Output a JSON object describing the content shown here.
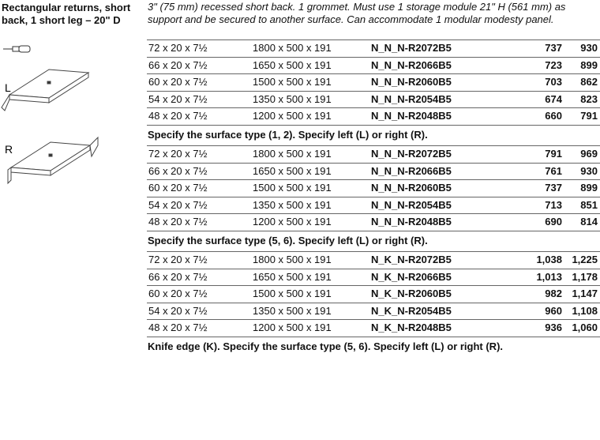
{
  "product": {
    "title": "Rectangular returns, short back, 1 short leg – 20\" D",
    "side_labels": [
      "L",
      "R"
    ]
  },
  "description": "3\" (75 mm) recessed short back. 1 grommet. Must use 1 storage module 21\" H (561 mm) as support and be secured to another surface. Can accommodate 1 modular modesty panel.",
  "groups": [
    {
      "rows": [
        [
          "72 x 20 x 7½",
          "1800 x 500 x 191",
          "N_N_N-R2072B5",
          "737",
          "930"
        ],
        [
          "66 x 20 x 7½",
          "1650 x 500 x 191",
          "N_N_N-R2066B5",
          "723",
          "899"
        ],
        [
          "60 x 20 x 7½",
          "1500 x 500 x 191",
          "N_N_N-R2060B5",
          "703",
          "862"
        ],
        [
          "54 x 20 x 7½",
          "1350 x 500 x 191",
          "N_N_N-R2054B5",
          "674",
          "823"
        ],
        [
          "48 x 20 x 7½",
          "1200 x 500 x 191",
          "N_N_N-R2048B5",
          "660",
          "791"
        ]
      ],
      "note": "Specify the surface type (1, 2). Specify left (L) or right (R)."
    },
    {
      "rows": [
        [
          "72 x 20 x 7½",
          "1800 x 500 x 191",
          "N_N_N-R2072B5",
          "791",
          "969"
        ],
        [
          "66 x 20 x 7½",
          "1650 x 500 x 191",
          "N_N_N-R2066B5",
          "761",
          "930"
        ],
        [
          "60 x 20 x 7½",
          "1500 x 500 x 191",
          "N_N_N-R2060B5",
          "737",
          "899"
        ],
        [
          "54 x 20 x 7½",
          "1350 x 500 x 191",
          "N_N_N-R2054B5",
          "713",
          "851"
        ],
        [
          "48 x 20 x 7½",
          "1200 x 500 x 191",
          "N_N_N-R2048B5",
          "690",
          "814"
        ]
      ],
      "note": "Specify the surface type (5, 6). Specify left (L) or right (R)."
    },
    {
      "rows": [
        [
          "72 x 20 x 7½",
          "1800 x 500 x 191",
          "N_K_N-R2072B5",
          "1,038",
          "1,225"
        ],
        [
          "66 x 20 x 7½",
          "1650 x 500 x 191",
          "N_K_N-R2066B5",
          "1,013",
          "1,178"
        ],
        [
          "60 x 20 x 7½",
          "1500 x 500 x 191",
          "N_K_N-R2060B5",
          "982",
          "1,147"
        ],
        [
          "54 x 20 x 7½",
          "1350 x 500 x 191",
          "N_K_N-R2054B5",
          "960",
          "1,108"
        ],
        [
          "48 x 20 x 7½",
          "1200 x 500 x 191",
          "N_K_N-R2048B5",
          "936",
          "1,060"
        ]
      ],
      "note": "Knife edge (K). Specify the surface type (5, 6). Specify left (L) or right (R)."
    }
  ]
}
